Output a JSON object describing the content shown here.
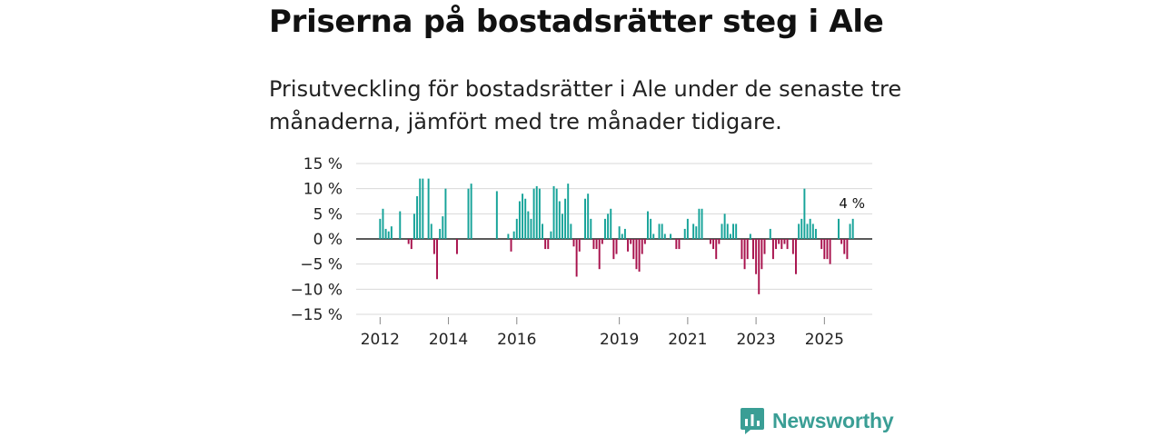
{
  "title": "Priserna på bostadsrätter steg i Ale",
  "subtitle": "Prisutveckling för bostadsrätter i Ale under de senaste tre månaderna, jämfört med tre månader tidigare.",
  "logo": {
    "text": "Newsworthy"
  },
  "colors": {
    "positive": "#16a399",
    "negative": "#a8124d",
    "grid": "#d8d8d8",
    "zero": "#222222",
    "text": "#222222"
  },
  "chart_data": {
    "type": "bar",
    "title": "",
    "xlabel": "",
    "ylabel": "",
    "ylim": [
      -15,
      15
    ],
    "y_ticks": [
      15,
      10,
      5,
      0,
      -5,
      -10,
      -15
    ],
    "y_tick_labels": [
      "15 %",
      "10 %",
      "5 %",
      "0 %",
      "−5 %",
      "−10 %",
      "−15 %"
    ],
    "x_tick_labels": [
      {
        "label": "2012",
        "year": 2012.0
      },
      {
        "label": "2014",
        "year": 2014.0
      },
      {
        "label": "2016",
        "year": 2016.0
      },
      {
        "label": "2019",
        "year": 2019.0
      },
      {
        "label": "2021",
        "year": 2021.0
      },
      {
        "label": "2023",
        "year": 2023.0
      },
      {
        "label": "2025",
        "year": 2025.0
      }
    ],
    "x_domain": [
      2011.3,
      2026.4
    ],
    "start": 2012.0,
    "step_months": 1,
    "last_label": "4 %",
    "values": [
      4,
      6,
      2,
      1.5,
      2.5,
      0,
      0,
      5.5,
      0,
      0,
      -1,
      -2,
      5,
      8.5,
      12,
      12,
      0,
      12,
      3,
      -3,
      -8,
      2,
      4.5,
      10,
      0,
      0,
      0,
      -3,
      0,
      0,
      0,
      10,
      11,
      0,
      0,
      0,
      0,
      0,
      0,
      0,
      0,
      9.5,
      0,
      0,
      0,
      1,
      -2.5,
      1.5,
      4,
      7.5,
      9,
      8,
      5.5,
      4,
      10,
      10.5,
      10,
      3,
      -2,
      -2,
      1.5,
      10.5,
      10,
      7.5,
      5,
      8,
      11,
      3,
      -1.5,
      -7.5,
      -2.5,
      0,
      8,
      9,
      4,
      -2,
      -2,
      -6,
      -1,
      4,
      5,
      6,
      -4,
      -3,
      2.5,
      1,
      2,
      -2.5,
      -1,
      -4,
      -6,
      -6.5,
      -3,
      -1,
      5.5,
      4,
      1,
      0,
      3,
      3,
      1,
      0,
      1,
      0,
      -2,
      -2,
      0,
      2,
      4,
      0,
      3,
      2.5,
      6,
      6,
      0,
      0,
      -1,
      -2,
      -4,
      -1,
      3,
      5,
      3,
      1,
      3,
      3,
      0,
      -4,
      -6,
      -4,
      1,
      -4,
      -7,
      -11,
      -6,
      -3,
      0,
      2,
      -4,
      -2,
      -1,
      -2,
      -1,
      -2,
      0,
      -3,
      -7,
      3,
      4,
      10,
      3,
      4,
      3,
      2,
      0,
      -2,
      -4,
      -4,
      -5,
      0,
      0,
      4,
      -1,
      -3,
      -4,
      3,
      4
    ]
  }
}
